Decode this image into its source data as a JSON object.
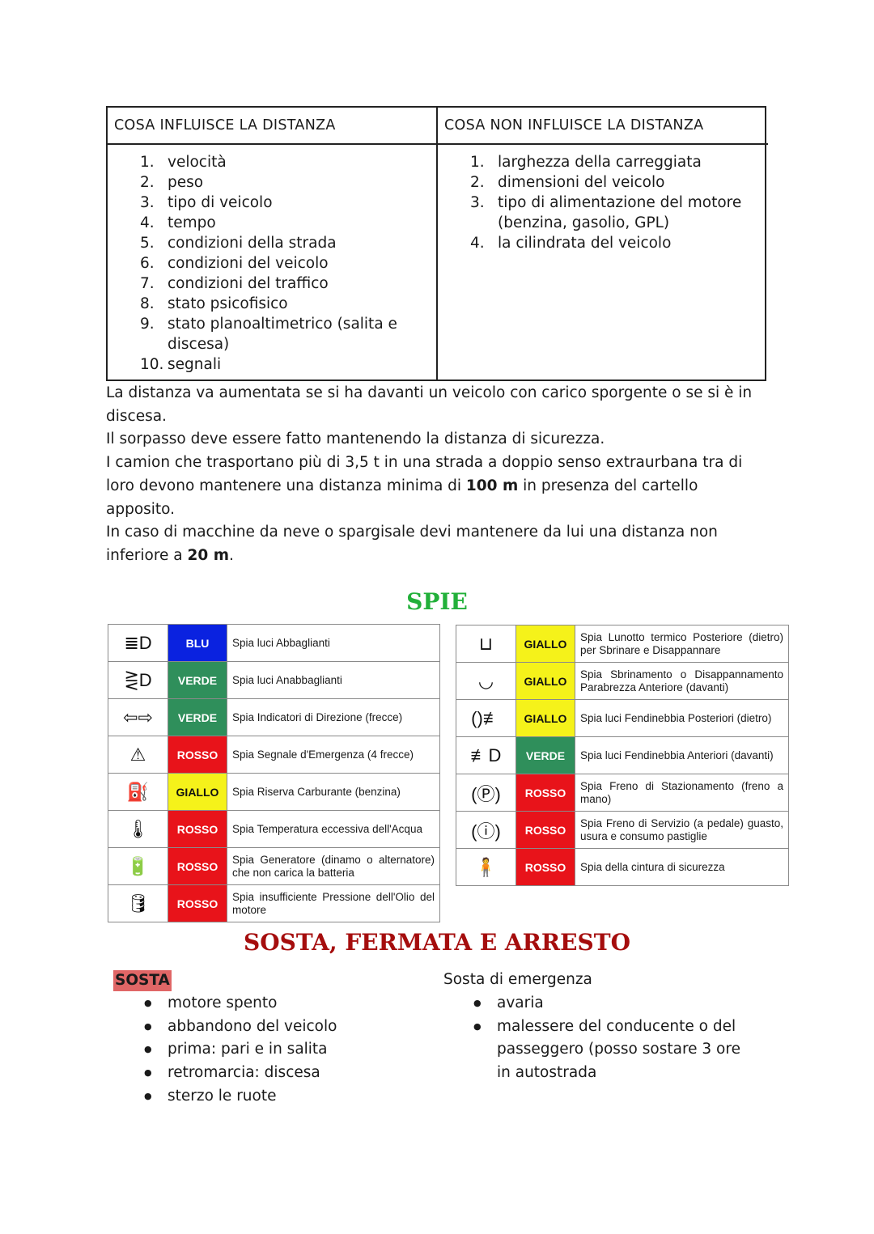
{
  "distance_table": {
    "headers": [
      "COSA INFLUISCE LA DISTANZA",
      "COSA NON INFLUISCE LA DISTANZA"
    ],
    "influisce": [
      "velocità",
      "peso",
      "tipo di veicolo",
      "tempo",
      "condizioni della strada",
      "condizioni del veicolo",
      "condizioni del traffico",
      "stato psicofisico",
      "stato planoaltimetrico (salita e discesa)",
      "segnali"
    ],
    "non_influisce": [
      "larghezza della carreggiata",
      "dimensioni del veicolo",
      "tipo di alimentazione del motore (benzina, gasolio, GPL)",
      "la cilindrata del veicolo"
    ]
  },
  "paragraphs": {
    "p1": "La distanza va aumentata se si ha davanti un veicolo con carico sporgente o se si è in discesa.",
    "p2": "Il sorpasso deve essere fatto mantenendo la distanza di sicurezza.",
    "p3a": "I camion che trasportano più di 3,5 t in una strada a doppio senso extraurbana tra di loro devono mantenere una distanza minima di ",
    "p3b": "100 m",
    "p3c": " in presenza del cartello apposito.",
    "p4a": "In caso di macchine da neve o spargisale devi mantenere da lui una distanza non inferiore a ",
    "p4b": "20 m",
    "p4c": "."
  },
  "spie": {
    "title": "SPIE",
    "title_color": "#22b03a",
    "left": [
      {
        "icon": "high-beam-icon",
        "glyph": "≣D",
        "color": "BLU",
        "hex": "#0a22e0",
        "text": "Spia luci Abbaglianti"
      },
      {
        "icon": "low-beam-icon",
        "glyph": "⋛D",
        "color": "VERDE",
        "hex": "#2f8f5b",
        "text": "Spia luci Anabbaglianti"
      },
      {
        "icon": "turn-signal-icon",
        "glyph": "⇦⇨",
        "color": "VERDE",
        "hex": "#2f8f5b",
        "text": "Spia Indicatori di Direzione (frecce)"
      },
      {
        "icon": "hazard-triangle-icon",
        "glyph": "⚠",
        "color": "ROSSO",
        "hex": "#e8131a",
        "text": "Spia Segnale d'Emergenza (4 frecce)"
      },
      {
        "icon": "fuel-pump-icon",
        "glyph": "⛽",
        "color": "GIALLO",
        "hex": "#f5f21a",
        "text": "Spia Riserva Carburante (benzina)"
      },
      {
        "icon": "coolant-temperature-icon",
        "glyph": "🌡",
        "color": "ROSSO",
        "hex": "#e8131a",
        "text": "Spia Temperatura eccessiva dell'Acqua"
      },
      {
        "icon": "battery-icon",
        "glyph": "🔋",
        "color": "ROSSO",
        "hex": "#e8131a",
        "text": "Spia Generatore (dinamo o alternatore) che non carica la batteria"
      },
      {
        "icon": "oil-can-icon",
        "glyph": "🛢",
        "color": "ROSSO",
        "hex": "#e8131a",
        "text": "Spia insufficiente Pressione dell'Olio del motore"
      }
    ],
    "right": [
      {
        "icon": "rear-defrost-icon",
        "glyph": "⊔",
        "color": "GIALLO",
        "hex": "#f5f21a",
        "text": "Spia Lunotto termico Posteriore (dietro) per Sbrinare e Disappannare"
      },
      {
        "icon": "front-defrost-icon",
        "glyph": "◡",
        "color": "GIALLO",
        "hex": "#f5f21a",
        "text": "Spia Sbrinamento o Disappannamento Parabrezza Anteriore (davanti)"
      },
      {
        "icon": "rear-fog-light-icon",
        "glyph": "()≢",
        "color": "GIALLO",
        "hex": "#f5f21a",
        "text": "Spia luci Fendinebbia Posteriori (dietro)"
      },
      {
        "icon": "front-fog-light-icon",
        "glyph": "≢D",
        "color": "VERDE",
        "hex": "#2f8f5b",
        "text": "Spia luci Fendinebbia Anteriori (davanti)"
      },
      {
        "icon": "parking-brake-icon",
        "glyph": "(Ⓟ)",
        "color": "ROSSO",
        "hex": "#e8131a",
        "text": "Spia Freno di Stazionamento (freno a mano)"
      },
      {
        "icon": "brake-warning-icon",
        "glyph": "(ⓘ)",
        "color": "ROSSO",
        "hex": "#e8131a",
        "text": "Spia Freno di Servizio (a pedale) guasto, usura e consumo pastiglie"
      },
      {
        "icon": "seatbelt-icon",
        "glyph": "🧍",
        "color": "ROSSO",
        "hex": "#e8131a",
        "text": "Spia della cintura di sicurezza"
      }
    ]
  },
  "sosta": {
    "title": "SOSTA, FERMATA E ARRESTO",
    "title_color": "#a50d0d",
    "label": "SOSTA",
    "label_bg": "#e06666",
    "items": [
      "motore spento",
      "abbandono del veicolo",
      "prima: pari e in salita",
      "retromarcia: discesa",
      "sterzo le ruote"
    ],
    "emergency_title": "Sosta di emergenza",
    "emergency_items": [
      "avaria",
      "malessere del conducente o del passeggero (posso sostare 3 ore in autostrada"
    ]
  }
}
